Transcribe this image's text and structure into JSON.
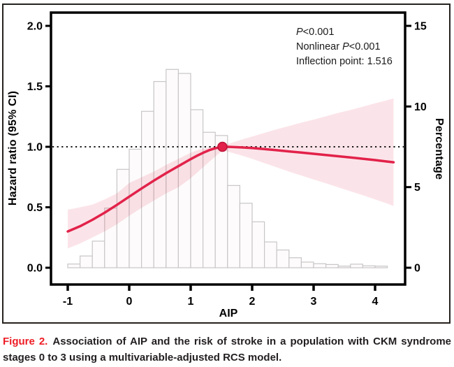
{
  "figure": {
    "caption_label": "Figure 2.",
    "caption_text": "Association of AIP and the risk of stroke in a population with CKM syndrome stages 0 to 3 using a multivariable-adjusted RCS model."
  },
  "annotation": {
    "line1_italic": "P",
    "line1_rest": "<0.001",
    "line2_pre": "Nonlinear ",
    "line2_italic": "P",
    "line2_rest": "<0.001",
    "line3": "Inflection point: 1.516"
  },
  "axes": {
    "xlabel": "AIP",
    "ylabel_left": "Hazard ratio (95% CI)",
    "ylabel_right": "Percentage"
  },
  "chart_data": {
    "type": "line",
    "subtype": "rcs-spline-with-ci-and-histogram",
    "title": "",
    "xlabel": "AIP",
    "ylabel_left": "Hazard ratio (95% CI)",
    "ylabel_right": "Percentage",
    "xlim": [
      -1.27,
      4.49
    ],
    "ylim_left": [
      0.0,
      2.1
    ],
    "ylim_right": [
      0,
      15.8
    ],
    "grid": false,
    "legend": "none",
    "x_ticks": [
      -1,
      0,
      1,
      2,
      3,
      4
    ],
    "x_tick_labels": [
      "-1",
      "0",
      "1",
      "2",
      "3",
      "4"
    ],
    "y_ticks_left": [
      0.0,
      0.5,
      1.0,
      1.5,
      2.0
    ],
    "y_tick_labels_left": [
      "0.0",
      "0.5",
      "1.0",
      "1.5",
      "2.0"
    ],
    "y_ticks_right": [
      0,
      5,
      10,
      15
    ],
    "y_tick_labels_right": [
      "0",
      "5",
      "10",
      "15"
    ],
    "reference_line_hr": 1.0,
    "inflection_point": {
      "x": 1.516,
      "hr": 1.0
    },
    "annotations": [
      "P<0.001",
      "Nonlinear P<0.001",
      "Inflection point: 1.516"
    ],
    "series": [
      {
        "name": "hazard-ratio-curve",
        "x": [
          -1.0,
          -0.8,
          -0.6,
          -0.4,
          -0.2,
          0.0,
          0.2,
          0.4,
          0.6,
          0.8,
          1.0,
          1.1,
          1.2,
          1.3,
          1.4,
          1.516,
          1.6,
          1.8,
          2.0,
          2.2,
          2.4,
          2.6,
          2.8,
          3.0,
          3.2,
          3.4,
          3.6,
          3.8,
          4.0,
          4.2,
          4.3
        ],
        "hr": [
          0.3,
          0.343,
          0.396,
          0.455,
          0.52,
          0.588,
          0.655,
          0.72,
          0.782,
          0.84,
          0.898,
          0.925,
          0.95,
          0.972,
          0.988,
          1.0,
          1.0,
          0.996,
          0.99,
          0.981,
          0.972,
          0.962,
          0.952,
          0.942,
          0.932,
          0.922,
          0.912,
          0.901,
          0.89,
          0.878,
          0.872
        ]
      },
      {
        "name": "ci-upper",
        "x": [
          -1.0,
          -0.8,
          -0.6,
          -0.4,
          -0.2,
          0.0,
          0.2,
          0.4,
          0.6,
          0.8,
          1.0,
          1.1,
          1.2,
          1.3,
          1.4,
          1.516,
          1.6,
          1.8,
          2.0,
          2.2,
          2.4,
          2.6,
          2.8,
          3.0,
          3.2,
          3.4,
          3.6,
          3.8,
          4.0,
          4.2,
          4.3
        ],
        "hr": [
          0.48,
          0.5,
          0.522,
          0.565,
          0.615,
          0.7,
          0.748,
          0.795,
          0.85,
          0.9,
          0.95,
          0.97,
          0.985,
          0.995,
          1.002,
          1.012,
          1.022,
          1.055,
          1.085,
          1.115,
          1.145,
          1.172,
          1.2,
          1.225,
          1.252,
          1.28,
          1.305,
          1.332,
          1.36,
          1.386,
          1.4
        ]
      },
      {
        "name": "ci-lower",
        "x": [
          -1.0,
          -0.8,
          -0.6,
          -0.4,
          -0.2,
          0.0,
          0.2,
          0.4,
          0.6,
          0.8,
          1.0,
          1.1,
          1.2,
          1.3,
          1.4,
          1.516,
          1.6,
          1.8,
          2.0,
          2.2,
          2.4,
          2.6,
          2.8,
          3.0,
          3.2,
          3.4,
          3.6,
          3.8,
          4.0,
          4.2,
          4.3
        ],
        "hr": [
          0.16,
          0.2,
          0.25,
          0.3,
          0.36,
          0.43,
          0.495,
          0.555,
          0.615,
          0.665,
          0.74,
          0.785,
          0.83,
          0.875,
          0.92,
          0.97,
          0.96,
          0.932,
          0.9,
          0.865,
          0.83,
          0.795,
          0.762,
          0.73,
          0.698,
          0.665,
          0.632,
          0.6,
          0.565,
          0.53,
          0.51
        ]
      },
      {
        "name": "aip-distribution-histogram",
        "bin_start": -1.0,
        "bin_width": 0.2,
        "percent": [
          0.23,
          0.73,
          1.65,
          3.7,
          6.1,
          7.35,
          9.7,
          11.55,
          12.3,
          12.05,
          9.8,
          8.4,
          8.2,
          5.1,
          4.0,
          2.85,
          1.6,
          1.1,
          0.62,
          0.35,
          0.25,
          0.2,
          0.1,
          0.22,
          0.12,
          0.1
        ]
      }
    ],
    "colors": {
      "curve": "#e2224a",
      "ci_band": "#e2224a",
      "ci_band_opacity": 0.12,
      "histogram_fill": "#fdfbfb",
      "histogram_stroke": "#c8c6c6",
      "reference_line": "#151515",
      "frame": "#000000",
      "inflection_dot_fill": "#e2224a",
      "inflection_dot_stroke": "#bc1336",
      "caption_red": "#ed1c24"
    }
  }
}
